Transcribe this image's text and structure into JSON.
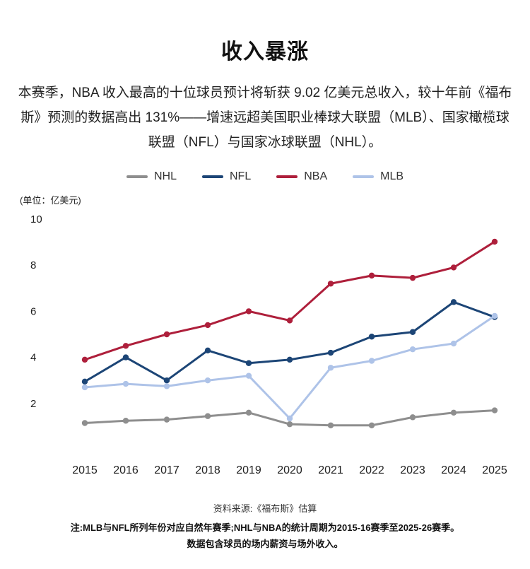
{
  "header": {
    "title": "收入暴涨",
    "subtitle": "本赛季，NBA 收入最高的十位球员预计将斩获 9.02 亿美元总收入，较十年前《福布斯》预测的数据高出 131%——增速远超美国职业棒球大联盟（MLB）、国家橄榄球联盟（NFL）与国家冰球联盟（NHL）。"
  },
  "chart_data": {
    "type": "line",
    "unit_label": "(单位：亿美元)",
    "x": [
      "2015",
      "2016",
      "2017",
      "2018",
      "2019",
      "2020",
      "2021",
      "2022",
      "2023",
      "2024",
      "2025"
    ],
    "series": [
      {
        "name": "NHL",
        "color": "#8e8e8e",
        "values": [
          1.15,
          1.25,
          1.3,
          1.45,
          1.6,
          1.1,
          1.05,
          1.05,
          1.4,
          1.6,
          1.7
        ]
      },
      {
        "name": "NFL",
        "color": "#1c4576",
        "values": [
          2.95,
          4.0,
          3.0,
          4.3,
          3.75,
          3.9,
          4.2,
          4.9,
          5.1,
          6.4,
          5.75
        ]
      },
      {
        "name": "NBA",
        "color": "#ae1f3b",
        "values": [
          3.9,
          4.5,
          5.0,
          5.4,
          6.0,
          5.6,
          7.2,
          7.55,
          7.45,
          7.9,
          9.02
        ]
      },
      {
        "name": "MLB",
        "color": "#aec3e8",
        "values": [
          2.7,
          2.85,
          2.75,
          3.0,
          3.2,
          1.35,
          3.55,
          3.85,
          4.35,
          4.6,
          5.8
        ]
      }
    ],
    "ylim": [
      0,
      10
    ],
    "yticks": [
      10,
      8,
      6,
      4,
      2
    ],
    "grid": false,
    "legend_position": "top"
  },
  "footer": {
    "source": "资料来源:《福布斯》估算",
    "note1": "注:MLB与NFL所列年份对应自然年赛季;NHL与NBA的统计周期为2015-16赛季至2025-26赛季。",
    "note2": "数据包含球员的场内薪资与场外收入。"
  }
}
